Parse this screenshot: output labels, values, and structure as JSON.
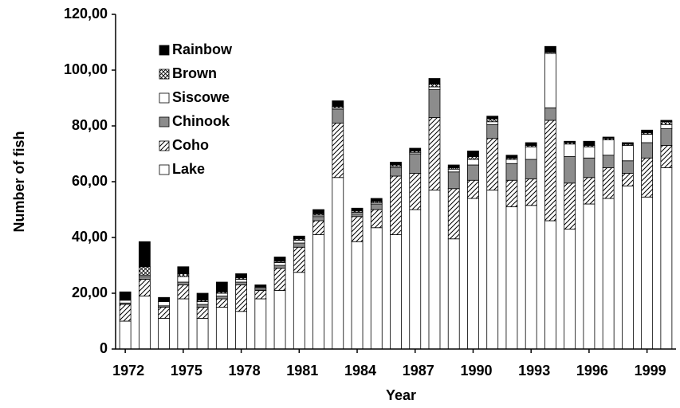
{
  "chart_data": {
    "type": "stacked_bar",
    "xlabel": "Year",
    "ylabel": "Number of fish",
    "categories": [
      "1972",
      null,
      null,
      "1975",
      null,
      null,
      "1978",
      null,
      null,
      "1981",
      null,
      null,
      "1984",
      null,
      null,
      "1987",
      null,
      null,
      "1990",
      null,
      null,
      "1993",
      null,
      null,
      "1996",
      null,
      null,
      "1999",
      null
    ],
    "series": [
      {
        "name": "Lake",
        "color": "#ffffff",
        "pattern": "solid",
        "values": [
          10,
          19,
          11,
          18,
          11,
          15,
          13.5,
          18,
          21,
          27.5,
          41,
          61.5,
          38.5,
          43.5,
          41,
          50,
          57,
          39.5,
          54,
          57,
          51,
          51.5,
          46,
          43,
          52,
          54,
          58.5,
          54.5,
          65
        ]
      },
      {
        "name": "Coho",
        "color": "#ffffff",
        "pattern": "diagonal",
        "values": [
          6,
          6,
          4,
          5,
          4,
          3,
          9.5,
          3,
          8,
          9,
          5,
          19.5,
          9,
          6.5,
          21,
          13,
          26,
          18,
          6.5,
          18.5,
          9.5,
          9.5,
          36,
          16.5,
          9.5,
          11,
          4.5,
          14,
          8
        ]
      },
      {
        "name": "Chinook",
        "color": "#8c8c8c",
        "pattern": "solid",
        "values": [
          0.5,
          1,
          0.5,
          1,
          1,
          1,
          1,
          0.5,
          1,
          1.5,
          1.5,
          5,
          1,
          2,
          3,
          7,
          10,
          6,
          5.5,
          5,
          6,
          7,
          4.5,
          9.5,
          7,
          4.5,
          4.5,
          5.5,
          6
        ]
      },
      {
        "name": "Siscowe",
        "color": "#ffffff",
        "pattern": "solid",
        "values": [
          1,
          0.5,
          1.5,
          2,
          1,
          1,
          1,
          0.5,
          1,
          1,
          0.5,
          0.5,
          0.5,
          0.5,
          0.5,
          0.5,
          1,
          1,
          2,
          1,
          1.5,
          4.5,
          19.5,
          4.5,
          4,
          5.5,
          5.5,
          3,
          1.5
        ]
      },
      {
        "name": "Brown",
        "color": "#ffffff",
        "pattern": "crosshatch",
        "values": [
          0,
          3,
          0,
          1,
          0.5,
          0.5,
          0.5,
          0,
          0.5,
          0.5,
          0.5,
          0.5,
          0.5,
          0.5,
          0.5,
          0.5,
          1,
          0.5,
          1,
          1,
          0.5,
          0.5,
          0.5,
          0.5,
          0.5,
          0.5,
          0.5,
          0.5,
          1
        ]
      },
      {
        "name": "Rainbow",
        "color": "#000000",
        "pattern": "solid",
        "values": [
          3,
          9,
          1.5,
          2.5,
          2.5,
          3.5,
          1.5,
          1,
          1.5,
          1,
          1.5,
          2,
          1,
          1,
          1,
          1,
          2,
          1,
          2,
          1,
          1,
          1,
          2,
          0.5,
          1.5,
          0.5,
          0.5,
          1,
          0.5
        ]
      }
    ],
    "ylim": [
      0,
      120
    ],
    "yticks": [
      0,
      {
        "value": 20,
        "label": "20,00"
      },
      {
        "value": 40,
        "label": "40,00"
      },
      {
        "value": 60,
        "label": "60,00"
      },
      {
        "value": 80,
        "label": "80,00"
      },
      {
        "value": 100,
        "label": "100,00"
      },
      {
        "value": 120,
        "label": "120,00"
      }
    ],
    "grid": false,
    "legend": "upper left"
  }
}
